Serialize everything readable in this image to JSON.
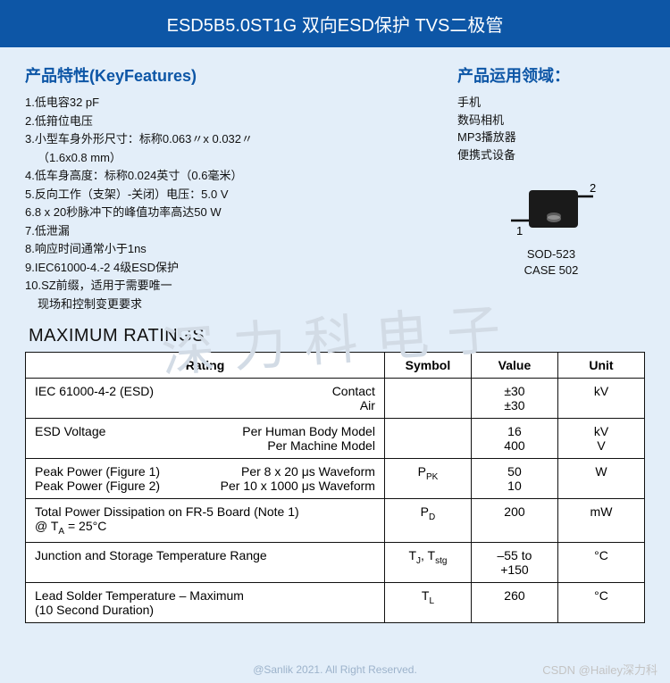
{
  "header": {
    "title": "ESD5B5.0ST1G  双向ESD保护 TVS二极管"
  },
  "features": {
    "title": "产品特性(KeyFeatures)",
    "items": [
      "1.低电容32 pF",
      "2.低箝位电压",
      "3.小型车身外形尺寸：标称0.063〃x 0.032〃",
      "（1.6x0.8 mm）",
      "4.低车身高度：标称0.024英寸（0.6毫米）",
      "5.反向工作（支架）-关闭）电压：5.0 V",
      "6.8 x 20秒脉冲下的峰值功率高达50 W",
      "7.低泄漏",
      "8.响应时间通常小于1ns",
      "9.IEC61000-4.-2 4级ESD保护",
      "10.SZ前缀，适用于需要唯一",
      "现场和控制变更要求"
    ],
    "indent_indices": [
      3,
      11
    ]
  },
  "applications": {
    "title": "产品运用领域：",
    "items": [
      "手机",
      "数码相机",
      "MP3播放器",
      "便携式设备"
    ]
  },
  "package": {
    "pin1": "1",
    "pin2": "2",
    "line1": "SOD-523",
    "line2": "CASE 502"
  },
  "ratings": {
    "title": "MAXIMUM RATINGS",
    "headers": {
      "rating": "Rating",
      "symbol": "Symbol",
      "value": "Value",
      "unit": "Unit"
    },
    "rows": [
      {
        "main": "IEC 61000-4-2 (ESD)",
        "sub": [
          "Contact",
          "Air"
        ],
        "symbol": "",
        "value": "±30\n±30",
        "unit": "kV"
      },
      {
        "main": "ESD Voltage",
        "sub": [
          "Per Human Body Model",
          "Per Machine Model"
        ],
        "symbol": "",
        "value": "16\n400",
        "unit": "kV\nV"
      },
      {
        "main": "Peak Power (Figure 1)\nPeak Power (Figure 2)",
        "sub": [
          "Per 8 x 20 μs Waveform",
          "Per 10 x 1000 μs Waveform"
        ],
        "symbol_html": "P<sub>PK</sub>",
        "value": "50\n10",
        "unit": "W"
      },
      {
        "main": "Total Power Dissipation on FR-5 Board (Note 1)\n@ T<sub>A</sub> = 25°C",
        "sub": [],
        "symbol_html": "P<sub>D</sub>",
        "value": "200",
        "unit": "mW"
      },
      {
        "main": "Junction and Storage Temperature Range",
        "sub": [],
        "symbol_html": "T<sub>J</sub>, T<sub>stg</sub>",
        "value": "–55 to\n+150",
        "unit": "°C"
      },
      {
        "main": "Lead Solder Temperature – Maximum\n(10 Second Duration)",
        "sub": [],
        "symbol_html": "T<sub>L</sub>",
        "value": "260",
        "unit": "°C"
      }
    ]
  },
  "footer": {
    "copyright": "@Sanlik 2021. All Right Reserved.",
    "csdn": "CSDN @Hailey深力科"
  },
  "watermark": "深力科电子"
}
